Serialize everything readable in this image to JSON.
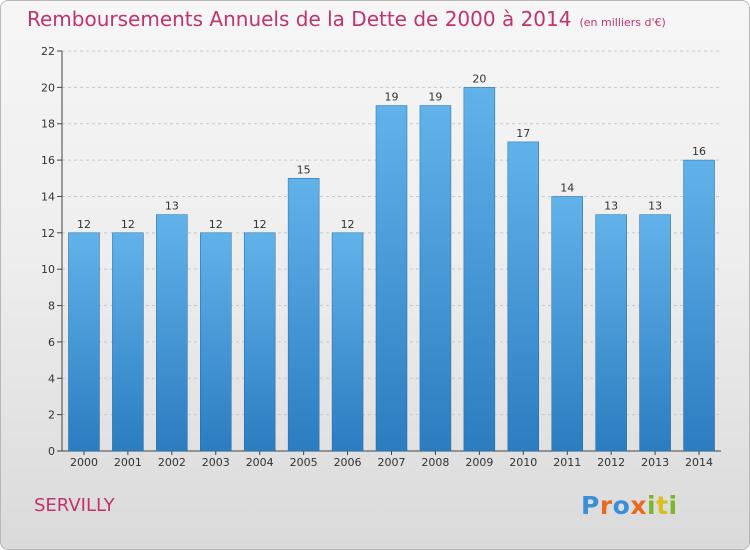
{
  "header": {
    "title": "Remboursements Annuels de la Dette de 2000 à 2014",
    "unit": "(en milliers d'€)"
  },
  "footer": {
    "commune": "SERVILLY",
    "logo": "Proxiti"
  },
  "colors": {
    "bar_light": "#62b2ea",
    "bar_dark": "#2b7dc0",
    "text_accent": "#c0336e",
    "grid": "#c8c8c8"
  },
  "chart_data": {
    "type": "bar",
    "title": "Remboursements Annuels de la Dette de 2000 à 2014",
    "ylabel": "",
    "xlabel": "",
    "categories": [
      "2000",
      "2001",
      "2002",
      "2003",
      "2004",
      "2005",
      "2006",
      "2007",
      "2008",
      "2009",
      "2010",
      "2011",
      "2012",
      "2013",
      "2014"
    ],
    "values": [
      12,
      12,
      13,
      12,
      12,
      15,
      12,
      19,
      19,
      20,
      17,
      14,
      13,
      13,
      16
    ],
    "ylim": [
      0,
      22
    ],
    "yticks": [
      0,
      2,
      4,
      6,
      8,
      10,
      12,
      14,
      16,
      18,
      20,
      22
    ],
    "grid": "horizontal dashed",
    "legend": "none"
  }
}
